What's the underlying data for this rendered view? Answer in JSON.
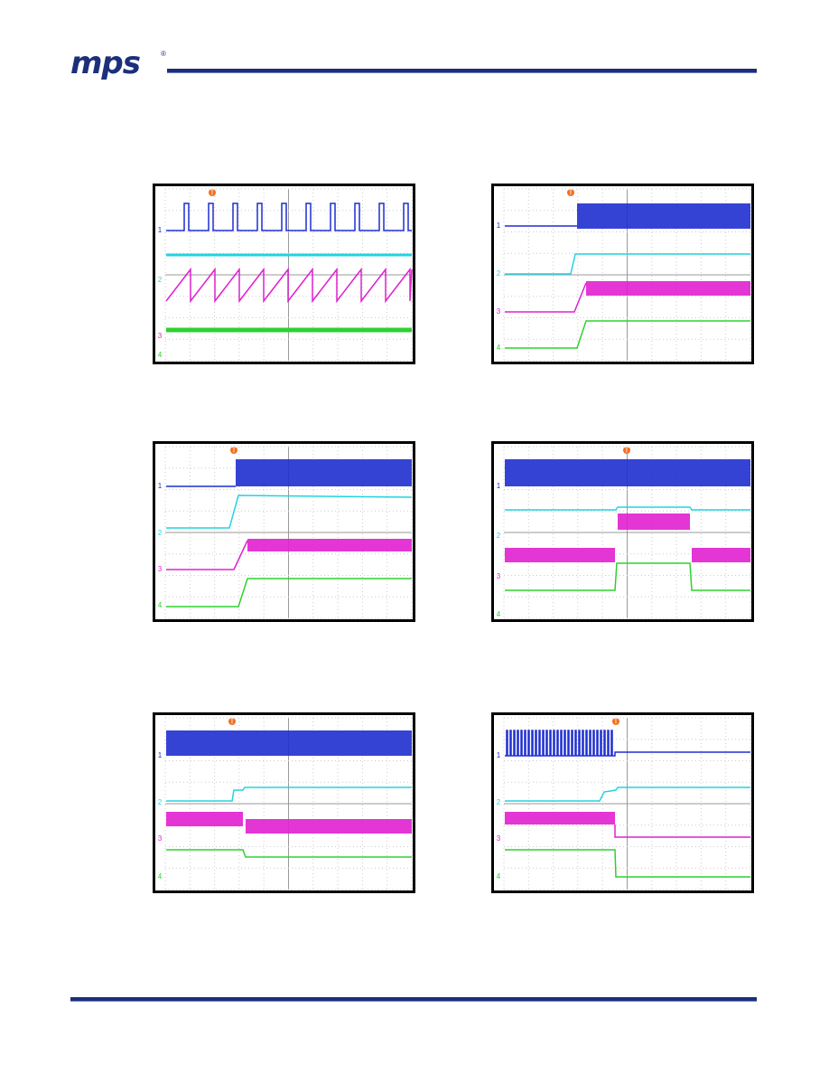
{
  "header": {
    "logo": "mps",
    "registered": "®"
  },
  "scopes": [
    {
      "trigger": "T",
      "channels": [
        "1",
        "2",
        "3",
        "4"
      ]
    },
    {
      "trigger": "T",
      "channels": [
        "1",
        "2",
        "3",
        "4"
      ]
    },
    {
      "trigger": "T",
      "channels": [
        "1",
        "2",
        "3",
        "4"
      ]
    },
    {
      "trigger": "T",
      "channels": [
        "1",
        "2",
        "3",
        "4"
      ]
    },
    {
      "trigger": "T",
      "channels": [
        "1",
        "2",
        "3",
        "4"
      ]
    },
    {
      "trigger": "T",
      "channels": [
        "1",
        "2",
        "3",
        "4"
      ]
    }
  ]
}
